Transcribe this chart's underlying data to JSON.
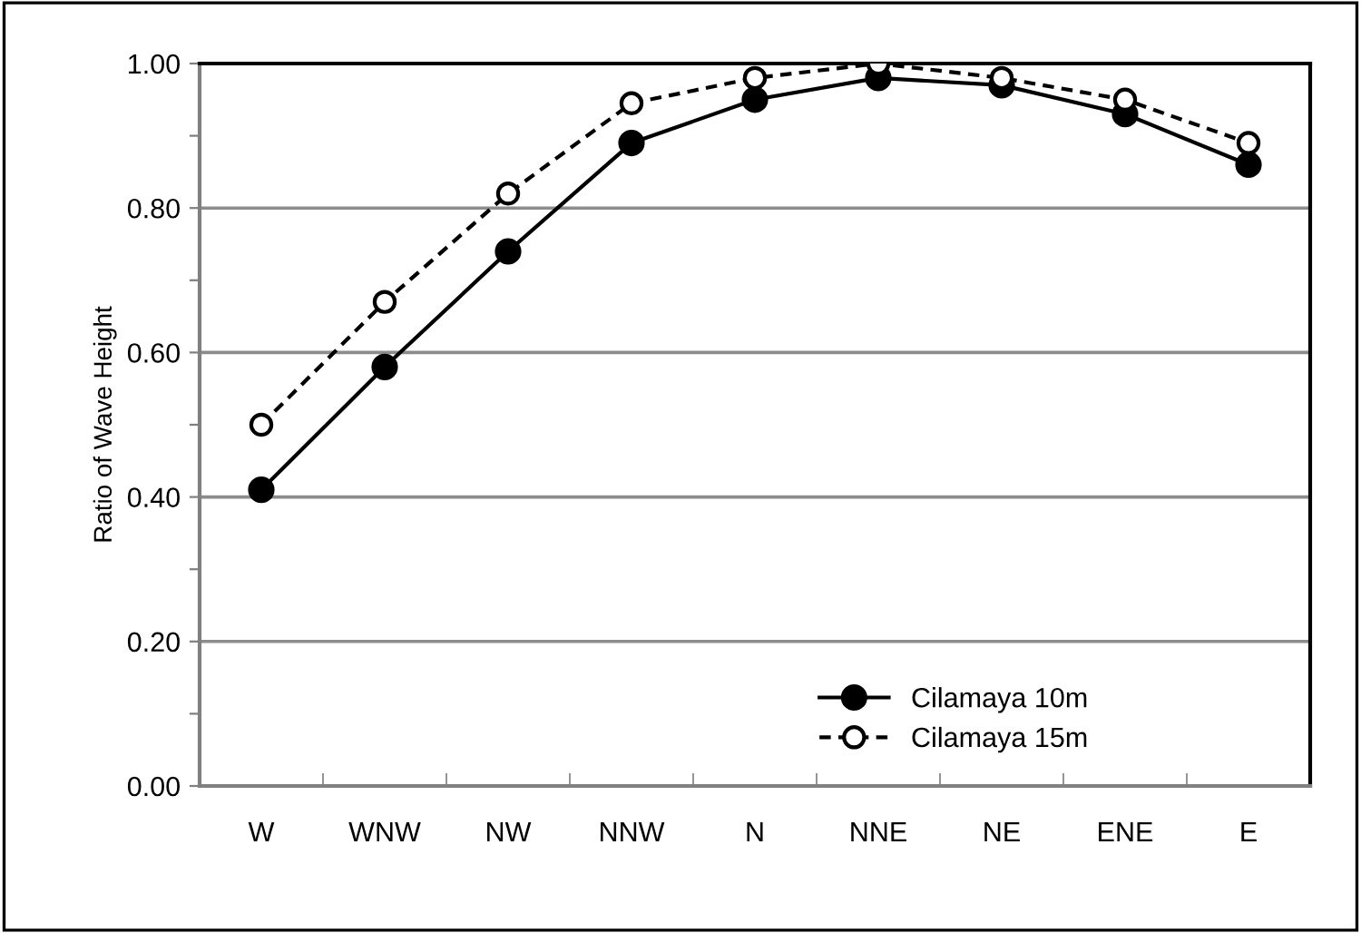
{
  "chart_data": {
    "type": "line",
    "ylabel": "Ratio of Wave Height",
    "categories": [
      "W",
      "WNW",
      "NW",
      "NNW",
      "N",
      "NNE",
      "NE",
      "ENE",
      "E"
    ],
    "series": [
      {
        "name": "Cilamaya 10m",
        "color": "#000000",
        "marker": "circle",
        "line_style": "solid",
        "values": [
          0.41,
          0.58,
          0.74,
          0.89,
          0.95,
          0.98,
          0.97,
          0.93,
          0.86
        ]
      },
      {
        "name": "Cilamaya 15m",
        "color": "#000000",
        "marker": "circle",
        "line_style": "dashed",
        "values": [
          0.5,
          0.67,
          0.82,
          0.945,
          0.98,
          1.0,
          0.98,
          0.95,
          0.89
        ]
      }
    ],
    "ylim": [
      0,
      1.0
    ],
    "yticks": [
      {
        "value": 0,
        "label": "0.00"
      },
      {
        "value": 0.1,
        "label": null
      },
      {
        "value": 0.2,
        "label": "0.20"
      },
      {
        "value": 0.3,
        "label": null
      },
      {
        "value": 0.4,
        "label": "0.40"
      },
      {
        "value": 0.5,
        "label": null
      },
      {
        "value": 0.6,
        "label": "0.60"
      },
      {
        "value": 0.7,
        "label": null
      },
      {
        "value": 0.8,
        "label": "0.80"
      },
      {
        "value": 0.9,
        "label": null
      },
      {
        "value": 1.0,
        "label": "1.00"
      }
    ],
    "grid": "y",
    "legend": "bottom right"
  }
}
